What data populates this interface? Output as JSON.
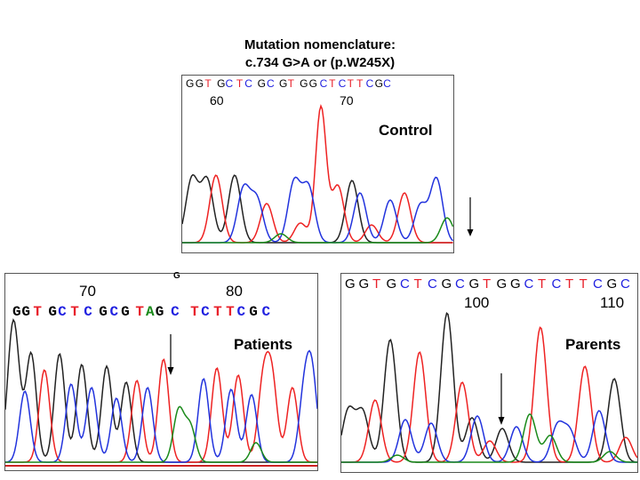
{
  "header": {
    "line1": "Mutation nomenclature:",
    "line2": "c.734 G>A or (p.W245X)"
  },
  "colors": {
    "G": "#000000",
    "A": "#1a8a1a",
    "T": "#e8202a",
    "C": "#2020e0"
  },
  "control": {
    "label": "Control",
    "sequence": [
      "G",
      "G",
      "T",
      "G",
      "C",
      "T",
      "C",
      "G",
      "C",
      "G",
      "T",
      "G",
      "G",
      "C",
      "T",
      "C",
      "T",
      "T",
      "C",
      "G",
      "C"
    ],
    "tick_labels": [
      "60",
      "70"
    ]
  },
  "patients": {
    "label": "Patients",
    "superscript": "G",
    "sequence": [
      "G",
      "G",
      "T",
      "G",
      "C",
      "T",
      "C",
      "G",
      "C",
      "G",
      "T",
      "A",
      "G",
      "C",
      "T",
      "C",
      "T",
      "T",
      "C",
      "G",
      "C"
    ],
    "tick_labels": [
      "70",
      "80"
    ]
  },
  "parents": {
    "label": "Parents",
    "sequence": [
      "G",
      "G",
      "T",
      "G",
      "C",
      "T",
      "C",
      "G",
      "C",
      "G",
      "T",
      "G",
      "G",
      "C",
      "T",
      "C",
      "T",
      "T",
      "C",
      "G",
      "C"
    ],
    "tick_labels": [
      "100",
      "110"
    ]
  }
}
